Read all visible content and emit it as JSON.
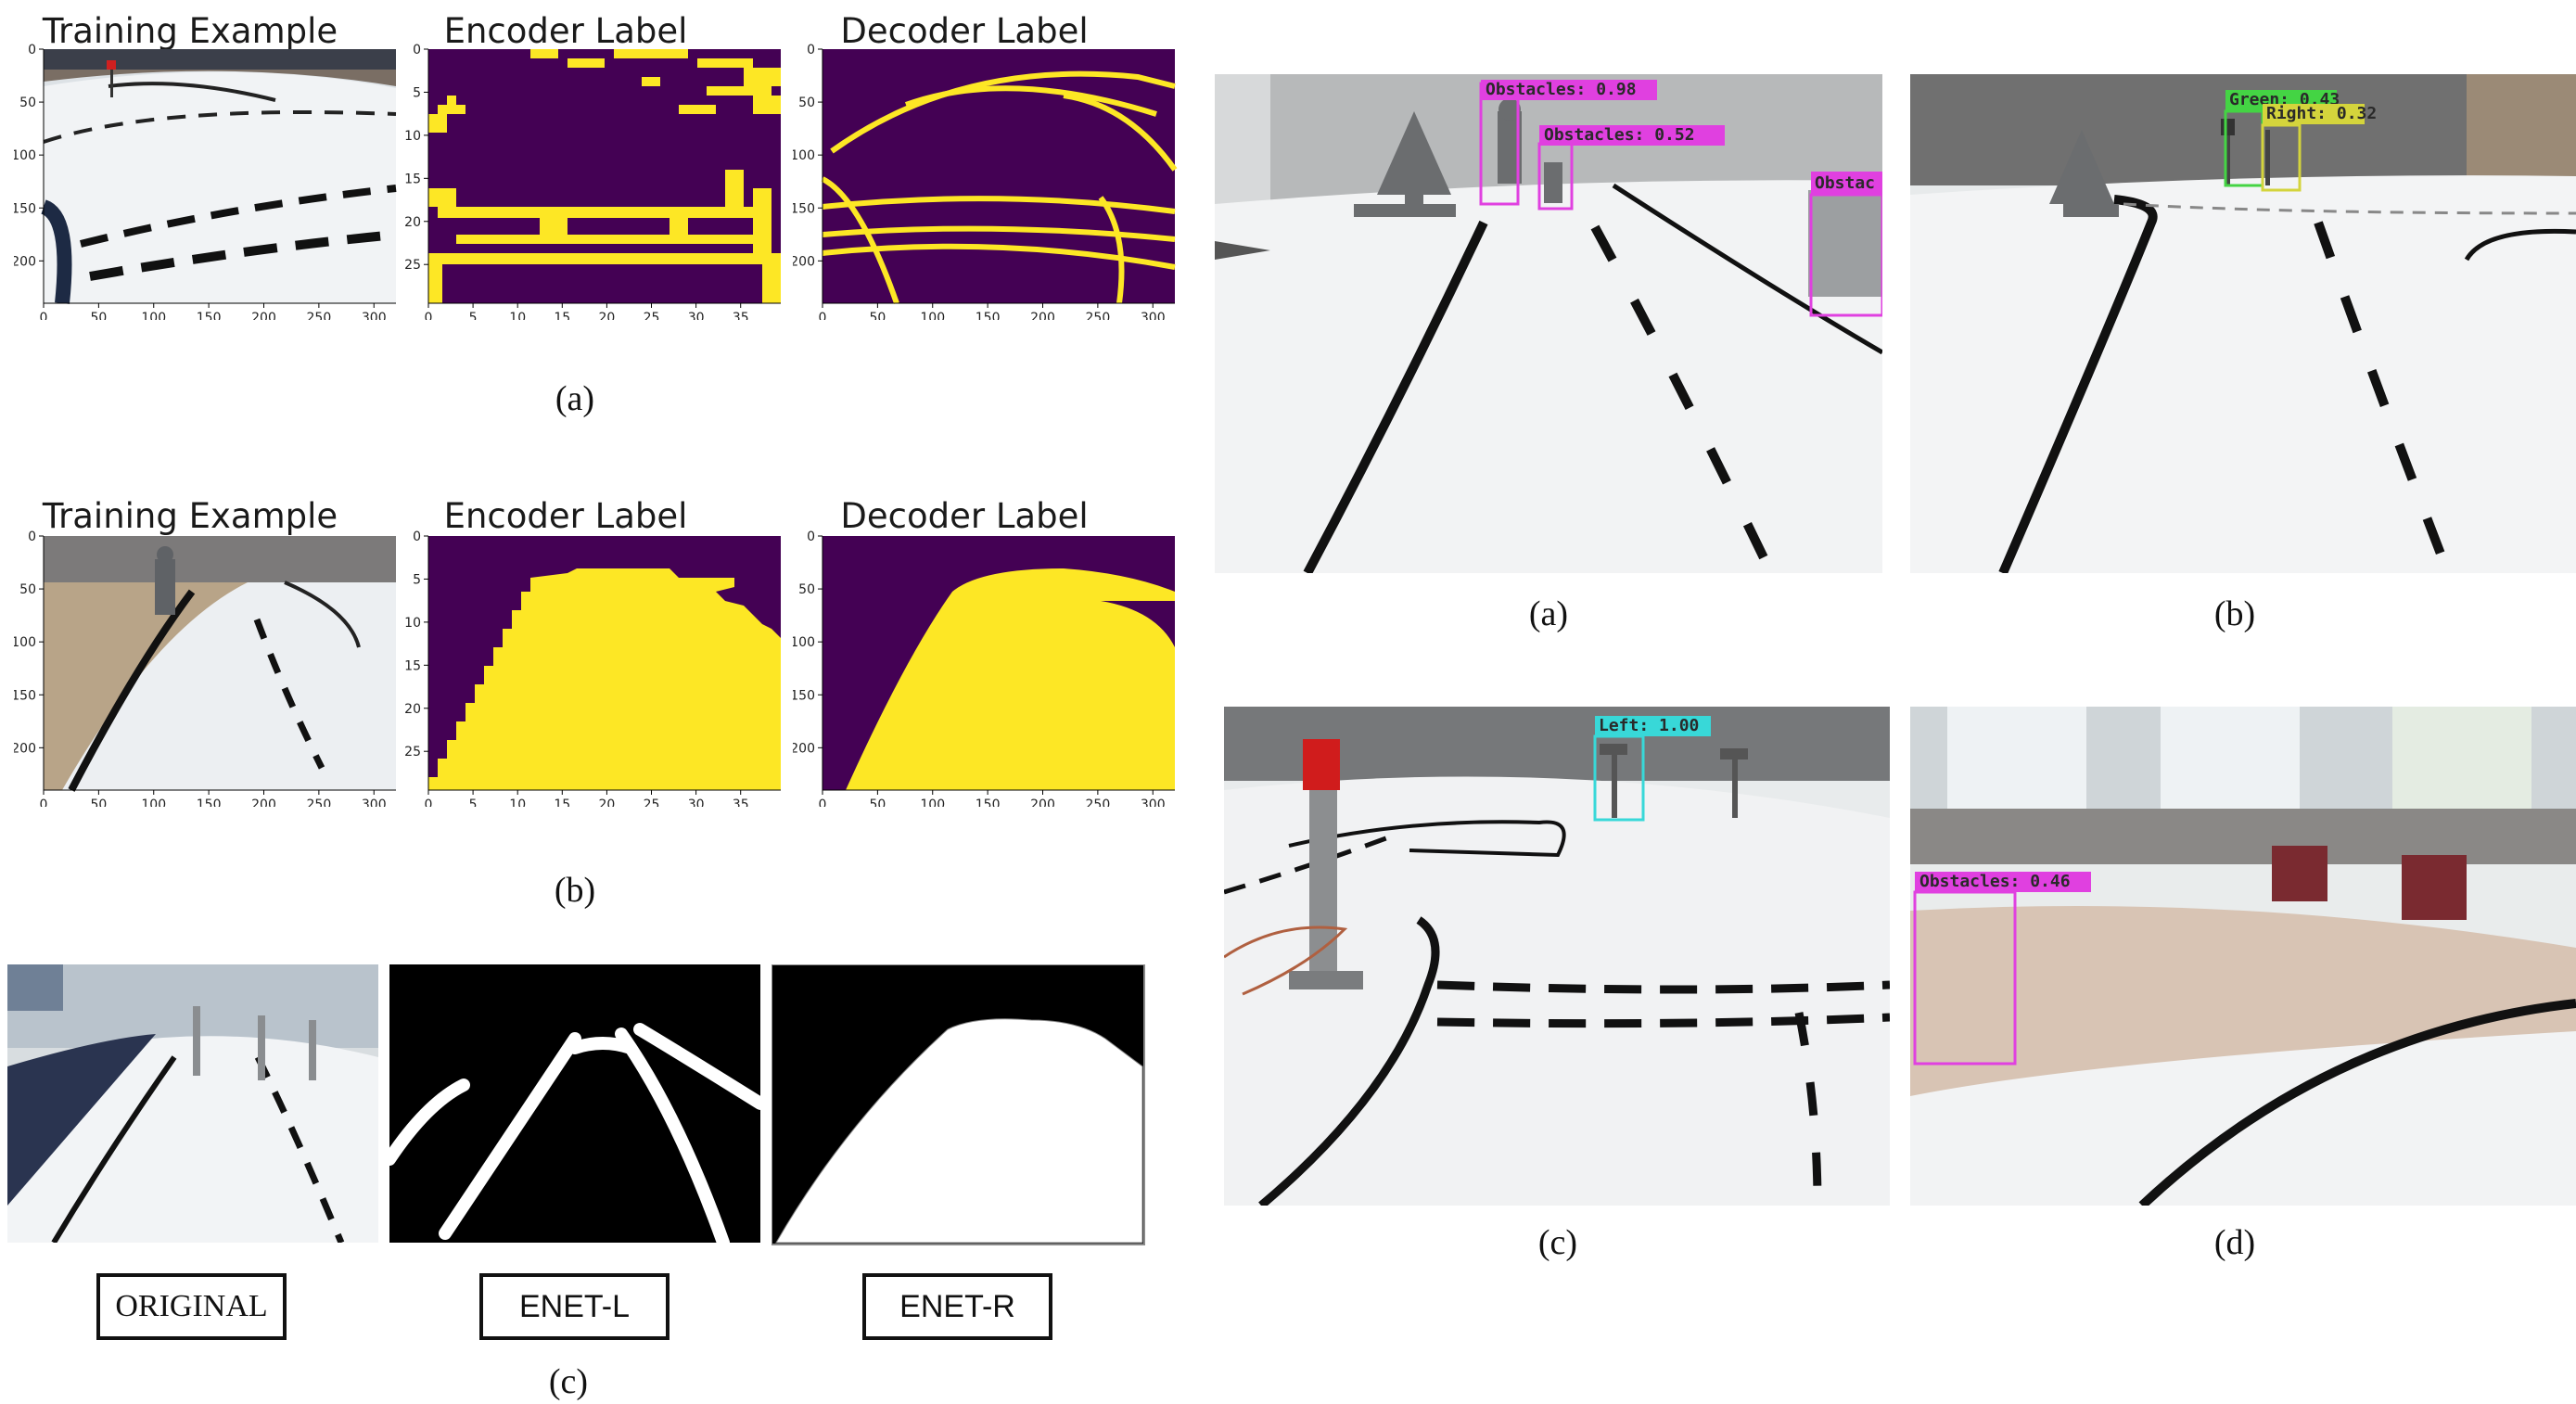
{
  "left_figure": {
    "row_a": {
      "panel_titles": [
        "Training Example",
        "Encoder Label",
        "Decoder Label"
      ],
      "caption": "(a)",
      "img_x_ticks": [
        "0",
        "50",
        "100",
        "150",
        "200",
        "250",
        "300"
      ],
      "img_y_ticks": [
        "0",
        "50",
        "100",
        "150",
        "200"
      ],
      "grid_x_ticks": [
        "0",
        "5",
        "10",
        "15",
        "20",
        "25",
        "30",
        "35"
      ],
      "grid_y_ticks": [
        "0",
        "5",
        "10",
        "15",
        "20",
        "25"
      ]
    },
    "row_b": {
      "panel_titles": [
        "Training Example",
        "Encoder Label",
        "Decoder Label"
      ],
      "caption": "(b)",
      "img_x_ticks": [
        "0",
        "50",
        "100",
        "150",
        "200",
        "250",
        "300"
      ],
      "img_y_ticks": [
        "0",
        "50",
        "100",
        "150",
        "200"
      ],
      "grid_x_ticks": [
        "0",
        "5",
        "10",
        "15",
        "20",
        "25",
        "30",
        "35"
      ],
      "grid_y_ticks": [
        "0",
        "5",
        "10",
        "15",
        "20",
        "25"
      ]
    },
    "row_c": {
      "labels": [
        "ORIGINAL",
        "ENET-L",
        "ENET-R"
      ],
      "caption": "(c)"
    },
    "colors": {
      "label_bg": "#440154",
      "label_fg": "#fde725"
    }
  },
  "right_figure": {
    "captions": [
      "(a)",
      "(b)",
      "(c)",
      "(d)"
    ],
    "detections": {
      "a": [
        "Obstacles: 0.98",
        "Obstacles: 0.52",
        "Obstac"
      ],
      "b": [
        "Green: 0.43",
        "Right: 0.32"
      ],
      "c": [
        "Left: 1.00"
      ],
      "d": [
        "Obstacles: 0.46"
      ]
    },
    "colors": {
      "obstacle": "#e040e0",
      "green": "#44d444",
      "right": "#d4d43c",
      "left": "#38d8d8"
    }
  }
}
